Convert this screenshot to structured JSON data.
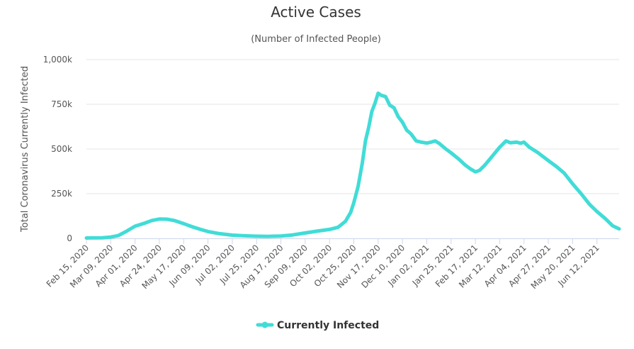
{
  "chart_data": {
    "type": "line",
    "title": "Active Cases",
    "subtitle": "(Number of Infected People)",
    "xlabel": "",
    "ylabel": "Total Coronavirus Currently Infected",
    "ylim": [
      0,
      1000000
    ],
    "y_ticks": [
      "0",
      "250k",
      "500k",
      "750k",
      "1,000k"
    ],
    "y_tick_values": [
      0,
      250000,
      500000,
      750000,
      1000000
    ],
    "x_range": [
      "2020-02-15",
      "2021-07-03"
    ],
    "x_ticks": [
      "Feb 15, 2020",
      "Mar 09, 2020",
      "Apr 01, 2020",
      "Apr 24, 2020",
      "May 17, 2020",
      "Jun 09, 2020",
      "Jul 02, 2020",
      "Jul 25, 2020",
      "Aug 17, 2020",
      "Sep 09, 2020",
      "Oct 02, 2020",
      "Oct 25, 2020",
      "Nov 17, 2020",
      "Dec 10, 2020",
      "Jan 02, 2021",
      "Jan 25, 2021",
      "Feb 17, 2021",
      "Mar 12, 2021",
      "Apr 04, 2021",
      "Apr 27, 2021",
      "May 20, 2021",
      "Jun 12, 2021"
    ],
    "x_tick_dates": [
      "2020-02-15",
      "2020-03-09",
      "2020-04-01",
      "2020-04-24",
      "2020-05-17",
      "2020-06-09",
      "2020-07-02",
      "2020-07-25",
      "2020-08-17",
      "2020-09-09",
      "2020-10-02",
      "2020-10-25",
      "2020-11-17",
      "2020-12-10",
      "2021-01-02",
      "2021-01-25",
      "2021-02-17",
      "2021-03-12",
      "2021-04-04",
      "2021-04-27",
      "2021-05-20",
      "2021-06-12"
    ],
    "grid": true,
    "legend_position": "bottom-center",
    "color": "#41dcd7",
    "series": [
      {
        "name": "Currently Infected",
        "points": [
          [
            "2020-02-15",
            2000
          ],
          [
            "2020-03-01",
            3000
          ],
          [
            "2020-03-09",
            7000
          ],
          [
            "2020-03-16",
            15000
          ],
          [
            "2020-03-24",
            40000
          ],
          [
            "2020-04-01",
            68000
          ],
          [
            "2020-04-10",
            85000
          ],
          [
            "2020-04-17",
            100000
          ],
          [
            "2020-04-24",
            108000
          ],
          [
            "2020-05-01",
            107000
          ],
          [
            "2020-05-08",
            100000
          ],
          [
            "2020-05-17",
            82000
          ],
          [
            "2020-05-25",
            65000
          ],
          [
            "2020-06-02",
            50000
          ],
          [
            "2020-06-09",
            38000
          ],
          [
            "2020-06-20",
            26000
          ],
          [
            "2020-07-02",
            18000
          ],
          [
            "2020-07-15",
            14000
          ],
          [
            "2020-07-25",
            12000
          ],
          [
            "2020-08-05",
            11000
          ],
          [
            "2020-08-17",
            13000
          ],
          [
            "2020-08-28",
            19000
          ],
          [
            "2020-09-09",
            30000
          ],
          [
            "2020-09-20",
            40000
          ],
          [
            "2020-10-02",
            50000
          ],
          [
            "2020-10-10",
            62000
          ],
          [
            "2020-10-17",
            95000
          ],
          [
            "2020-10-22",
            145000
          ],
          [
            "2020-10-25",
            200000
          ],
          [
            "2020-10-29",
            290000
          ],
          [
            "2020-11-02",
            420000
          ],
          [
            "2020-11-05",
            545000
          ],
          [
            "2020-11-08",
            620000
          ],
          [
            "2020-11-11",
            710000
          ],
          [
            "2020-11-14",
            755000
          ],
          [
            "2020-11-17",
            812000
          ],
          [
            "2020-11-20",
            800000
          ],
          [
            "2020-11-24",
            793000
          ],
          [
            "2020-11-28",
            745000
          ],
          [
            "2020-12-02",
            730000
          ],
          [
            "2020-12-06",
            680000
          ],
          [
            "2020-12-10",
            650000
          ],
          [
            "2020-12-14",
            605000
          ],
          [
            "2020-12-18",
            585000
          ],
          [
            "2020-12-23",
            545000
          ],
          [
            "2020-12-28",
            538000
          ],
          [
            "2021-01-02",
            533000
          ],
          [
            "2021-01-06",
            538000
          ],
          [
            "2021-01-10",
            545000
          ],
          [
            "2021-01-14",
            530000
          ],
          [
            "2021-01-20",
            500000
          ],
          [
            "2021-01-25",
            478000
          ],
          [
            "2021-02-01",
            445000
          ],
          [
            "2021-02-07",
            412000
          ],
          [
            "2021-02-12",
            390000
          ],
          [
            "2021-02-17",
            372000
          ],
          [
            "2021-02-21",
            380000
          ],
          [
            "2021-02-26",
            410000
          ],
          [
            "2021-03-05",
            460000
          ],
          [
            "2021-03-12",
            510000
          ],
          [
            "2021-03-18",
            545000
          ],
          [
            "2021-03-22",
            535000
          ],
          [
            "2021-03-28",
            538000
          ],
          [
            "2021-04-01",
            532000
          ],
          [
            "2021-04-04",
            538000
          ],
          [
            "2021-04-09",
            510000
          ],
          [
            "2021-04-17",
            480000
          ],
          [
            "2021-04-27",
            435000
          ],
          [
            "2021-05-05",
            400000
          ],
          [
            "2021-05-12",
            365000
          ],
          [
            "2021-05-20",
            305000
          ],
          [
            "2021-05-28",
            250000
          ],
          [
            "2021-06-05",
            190000
          ],
          [
            "2021-06-12",
            150000
          ],
          [
            "2021-06-20",
            110000
          ],
          [
            "2021-06-27",
            70000
          ],
          [
            "2021-07-03",
            53000
          ]
        ]
      }
    ]
  }
}
